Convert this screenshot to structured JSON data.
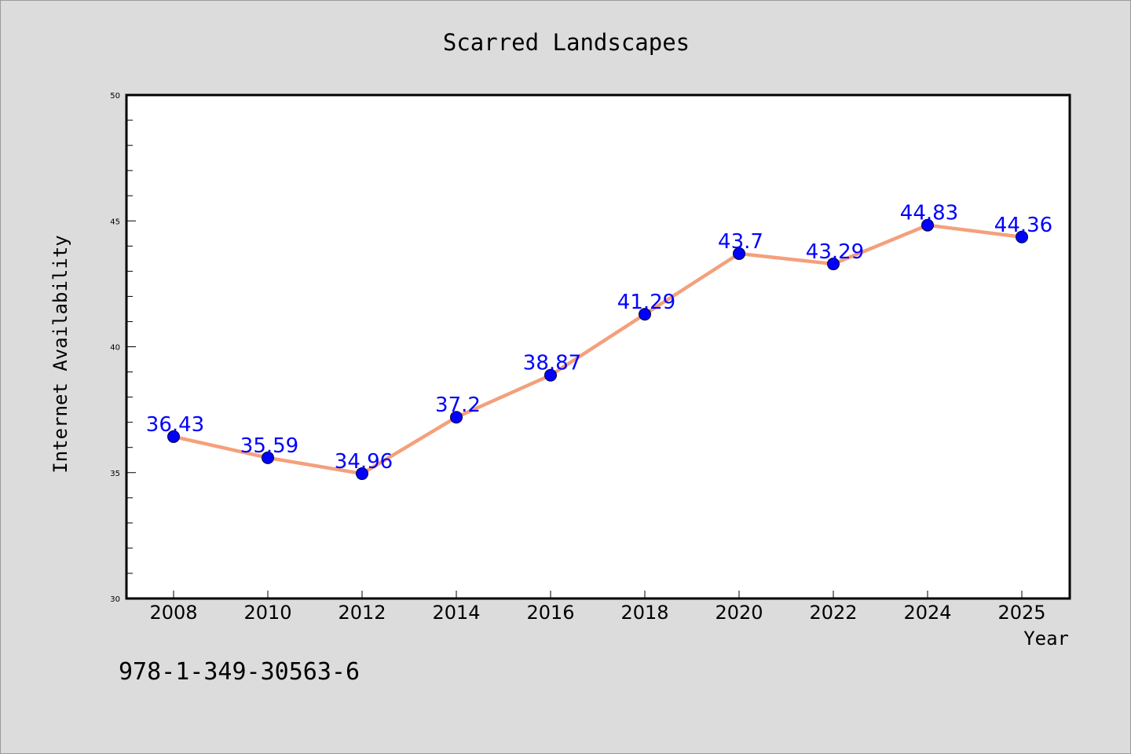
{
  "footer": {
    "isbn": "978-1-349-30563-6"
  },
  "colors": {
    "background": "#dcdcdc",
    "plot_background": "#ffffff",
    "line": "#f4a07c",
    "marker": "#0000ff",
    "data_label": "#0000ff",
    "text": "#000000"
  },
  "chart_data": {
    "type": "line",
    "title": "Scarred Landscapes",
    "xlabel": "Year",
    "ylabel": "Internet Availability",
    "x": [
      2008,
      2010,
      2012,
      2014,
      2016,
      2018,
      2020,
      2022,
      2024,
      2025
    ],
    "series": [
      {
        "values": [
          36.43,
          35.59,
          34.96,
          37.2,
          38.87,
          41.29,
          43.7,
          43.29,
          44.83,
          44.36
        ],
        "labels": [
          "36.43",
          "35.59",
          "34.96",
          "37.2",
          "38.87",
          "41.29",
          "43.7",
          "43.29",
          "44.83",
          "44.36"
        ]
      }
    ],
    "x_ticks": [
      "2008",
      "2010",
      "2012",
      "2014",
      "2016",
      "2018",
      "2020",
      "2022",
      "2024",
      "2025"
    ],
    "y_ticks": [
      "30",
      "35",
      "40",
      "45",
      "50"
    ],
    "ylim": [
      30,
      50
    ],
    "grid": false,
    "legend": "none",
    "markers": "circle"
  }
}
